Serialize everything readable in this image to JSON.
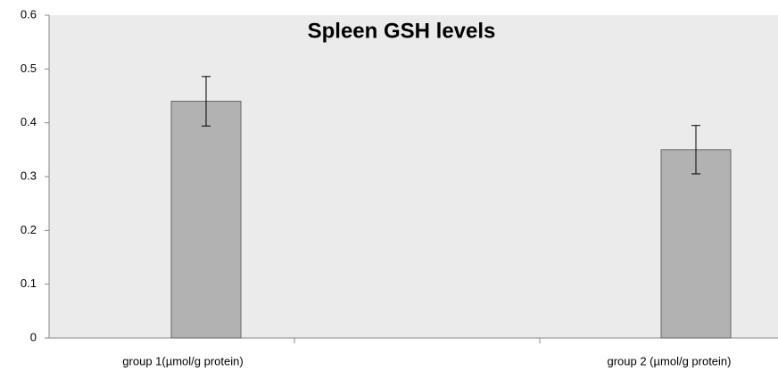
{
  "chart_data": {
    "type": "bar",
    "title": "Spleen GSH levels",
    "categories": [
      "group 1(µmol/g protein)",
      "group 2 (µmol/g protein)"
    ],
    "values": [
      0.44,
      0.35
    ],
    "errors": [
      0.046,
      0.045
    ],
    "color": "#b2b2b2",
    "ylim": [
      0,
      0.6
    ],
    "yticks": [
      0,
      0.1,
      0.2,
      0.3,
      0.4,
      0.5,
      0.6
    ],
    "grid": false
  }
}
